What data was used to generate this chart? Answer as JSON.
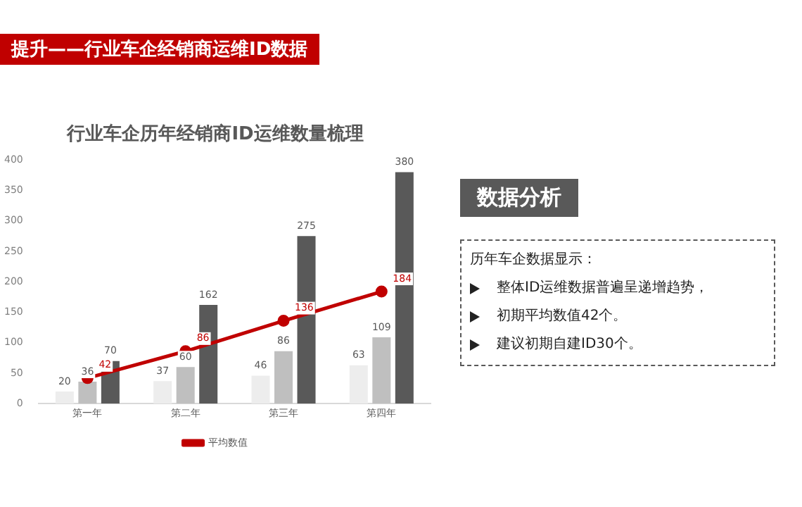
{
  "chart_data": {
    "type": "bar",
    "title": "行业车企历年经销商ID运维数量梳理",
    "categories": [
      "第一年",
      "第二年",
      "第三年",
      "第四年"
    ],
    "series": [
      {
        "color": "#ededed",
        "values": [
          20,
          37,
          46,
          63
        ]
      },
      {
        "color": "#bfbfbf",
        "values": [
          36,
          60,
          86,
          109
        ]
      },
      {
        "color": "#595959",
        "values": [
          70,
          162,
          275,
          380
        ]
      },
      {
        "type": "line",
        "name": "平均数值",
        "color": "#c00000",
        "values": [
          42,
          86,
          136,
          184
        ]
      }
    ],
    "ylim": [
      0,
      400
    ],
    "yticks": [
      0,
      50,
      100,
      150,
      200,
      250,
      300,
      350,
      400
    ],
    "grid": false,
    "legend": "bottom",
    "marker": "circle",
    "data_labels": true,
    "annotations": [
      "提升——行业车企经销商运维ID数据",
      "数据分析",
      "历年车企数据显示：",
      "整体ID运维数据普遍呈递增趋势，",
      "初期平均数值42个。",
      "建议初期自建ID30个。"
    ]
  }
}
